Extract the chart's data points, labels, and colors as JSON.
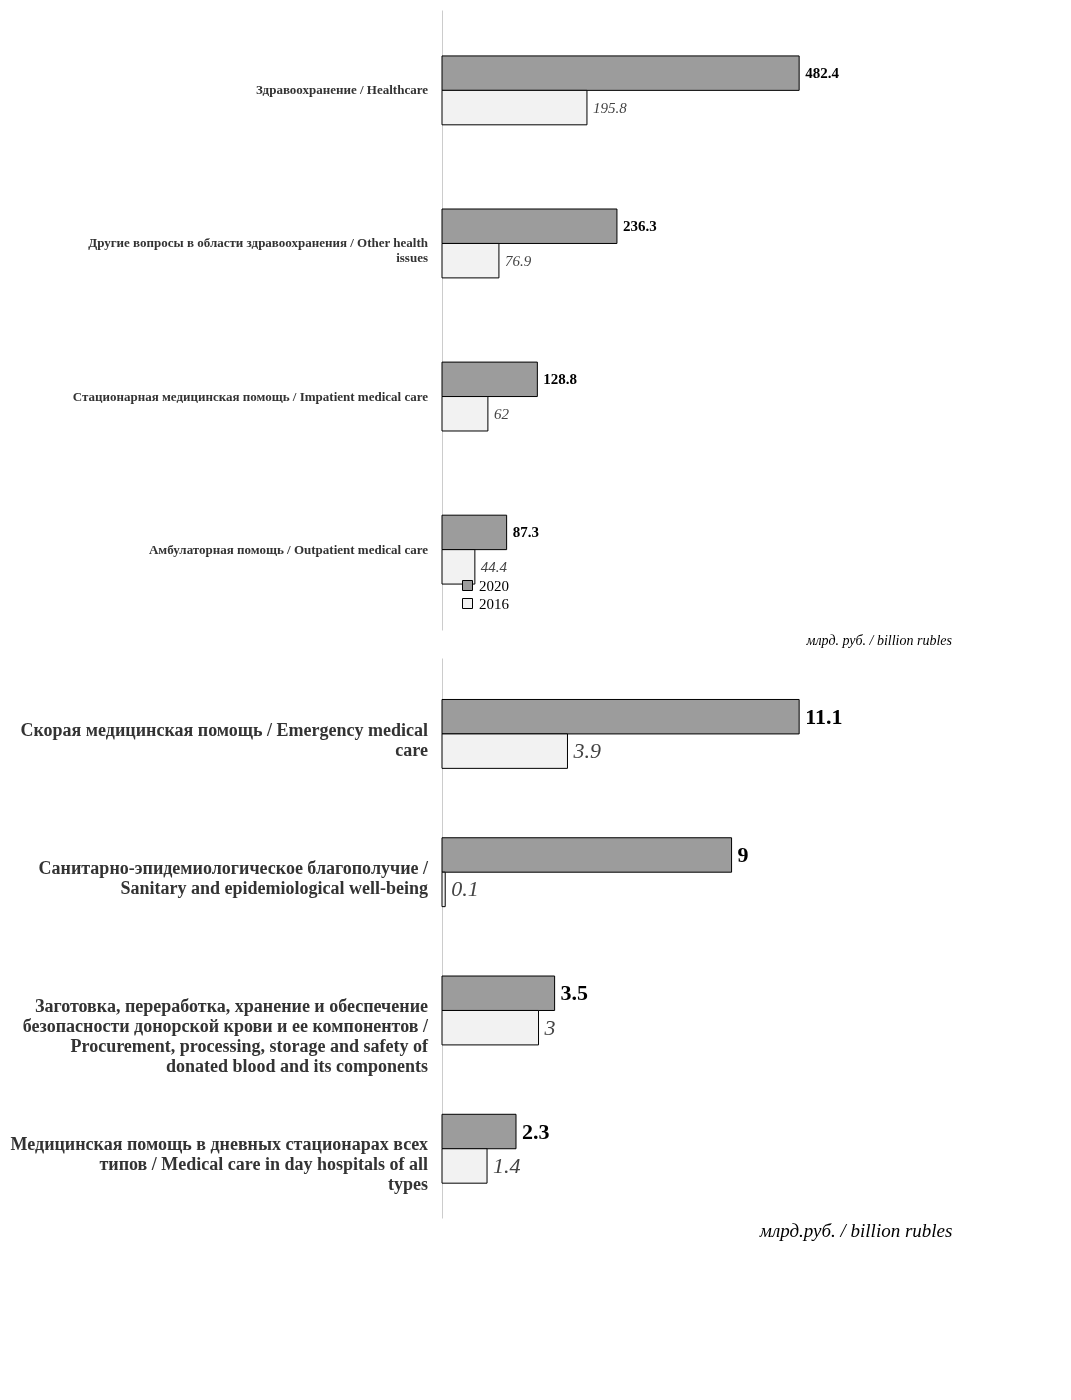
{
  "chart_data": [
    {
      "type": "bar",
      "orientation": "horizontal",
      "categories": [
        "Здравоохранение / Healthcare",
        "Другие вопросы в области здравоохранения / Other health issues",
        "Стационарная медицинская помощь / Impatient medical care",
        "Амбулаторная помощь / Outpatient medical care"
      ],
      "series": [
        {
          "name": "2020",
          "color": "#9c9c9c",
          "values": [
            482.4,
            236.3,
            128.8,
            87.3
          ]
        },
        {
          "name": "2016",
          "color": "#f2f2f2",
          "values": [
            195.8,
            76.9,
            62,
            44.4
          ]
        }
      ],
      "data_labels": true,
      "legend": "bottom left",
      "annotations": [
        "млрд. руб. / billion rubles"
      ]
    },
    {
      "type": "bar",
      "orientation": "horizontal",
      "categories": [
        "Скорая медицинская помощь / Emergency medical care",
        "Санитарно-эпидемиологическое благополучие / Sanitary and epidemiological well-being",
        "Заготовка, переработка, хранение и обеспечение безопасности донорской крови и ее компонентов / Procurement, processing, storage and safety of donated blood and its components",
        "Медицинская помощь в дневных стационарах всех типов / Medical care in day hospitals of all types"
      ],
      "series": [
        {
          "color": "#9c9c9c",
          "values": [
            11.1,
            9,
            3.5,
            2.3
          ]
        },
        {
          "color": "#f2f2f2",
          "values": [
            3.9,
            0.1,
            3,
            1.4
          ]
        }
      ],
      "data_labels": true,
      "annotations": [
        "млрд.руб. / billion rubles"
      ]
    }
  ]
}
